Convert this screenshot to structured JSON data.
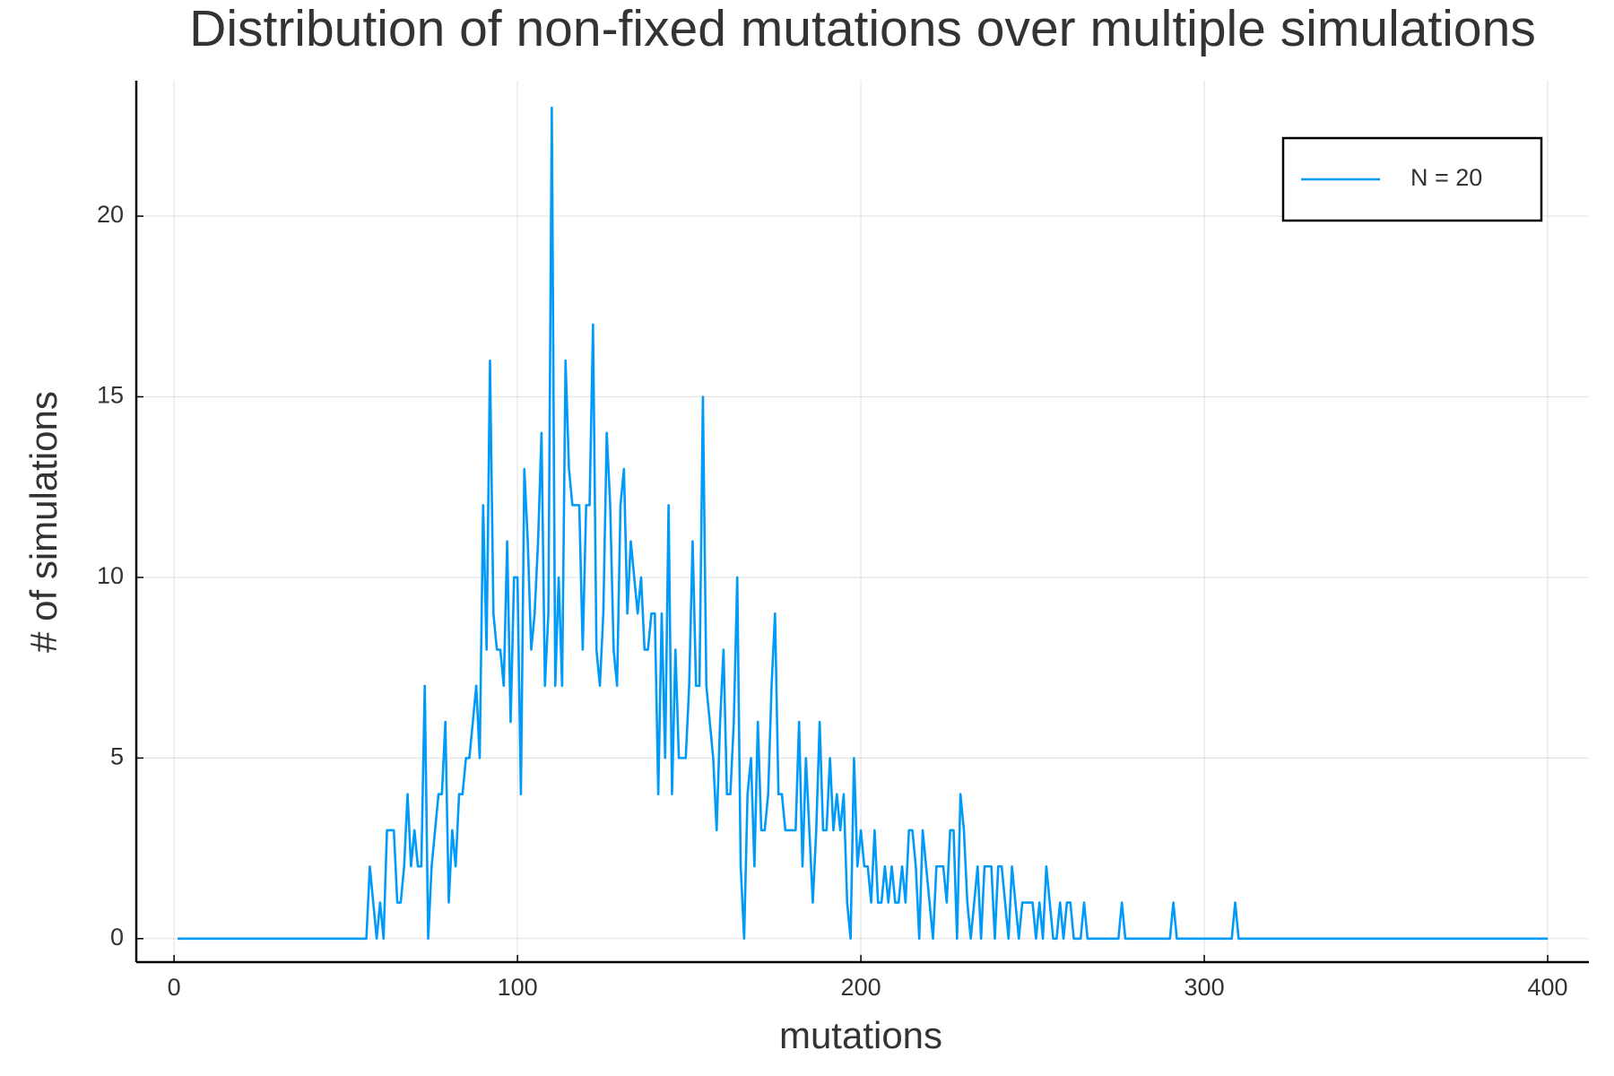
{
  "chart_data": {
    "type": "line",
    "title": "Distribution of non-fixed mutations over multiple simulations",
    "x_label": "mutations",
    "y_label": "# of simulations",
    "xlim": [
      -11,
      412
    ],
    "ylim": [
      -0.65,
      23.75
    ],
    "xticks": [
      0,
      100,
      200,
      300,
      400
    ],
    "yticks": [
      0,
      5,
      10,
      15,
      20
    ],
    "grid": true,
    "legend_position": "top-right",
    "series": [
      {
        "name": "N = 20",
        "color": "#009af9",
        "x": [
          1,
          56,
          57,
          58,
          59,
          60,
          61,
          62,
          63,
          64,
          65,
          66,
          67,
          68,
          69,
          70,
          71,
          72,
          73,
          74,
          75,
          76,
          77,
          78,
          79,
          80,
          81,
          82,
          83,
          84,
          85,
          86,
          87,
          88,
          89,
          90,
          91,
          92,
          93,
          94,
          95,
          96,
          97,
          98,
          99,
          100,
          101,
          102,
          103,
          104,
          105,
          106,
          107,
          108,
          109,
          110,
          111,
          112,
          113,
          114,
          115,
          116,
          117,
          118,
          119,
          120,
          121,
          122,
          123,
          124,
          125,
          126,
          127,
          128,
          129,
          130,
          131,
          132,
          133,
          134,
          135,
          136,
          137,
          138,
          139,
          140,
          141,
          142,
          143,
          144,
          145,
          146,
          147,
          148,
          149,
          150,
          151,
          152,
          153,
          154,
          155,
          156,
          157,
          158,
          159,
          160,
          161,
          162,
          163,
          164,
          165,
          166,
          167,
          168,
          169,
          170,
          171,
          172,
          173,
          174,
          175,
          176,
          177,
          178,
          179,
          180,
          181,
          182,
          183,
          184,
          185,
          186,
          187,
          188,
          189,
          190,
          191,
          192,
          193,
          194,
          195,
          196,
          197,
          198,
          199,
          200,
          201,
          202,
          203,
          204,
          205,
          206,
          207,
          208,
          209,
          210,
          211,
          212,
          213,
          214,
          215,
          216,
          217,
          218,
          219,
          220,
          221,
          222,
          223,
          224,
          225,
          226,
          227,
          228,
          229,
          230,
          231,
          232,
          233,
          234,
          235,
          236,
          237,
          238,
          239,
          240,
          241,
          242,
          243,
          244,
          245,
          246,
          247,
          248,
          249,
          250,
          251,
          252,
          253,
          254,
          255,
          256,
          257,
          258,
          259,
          260,
          261,
          262,
          263,
          264,
          265,
          266,
          275,
          276,
          277,
          290,
          291,
          292,
          308,
          309,
          310,
          400
        ],
        "values": [
          0,
          0,
          2,
          1,
          0,
          1,
          0,
          3,
          3,
          3,
          1,
          1,
          2,
          4,
          2,
          3,
          2,
          2,
          7,
          0,
          2,
          3,
          4,
          4,
          6,
          1,
          3,
          2,
          4,
          4,
          5,
          5,
          6,
          7,
          5,
          12,
          8,
          16,
          9,
          8,
          8,
          7,
          11,
          6,
          10,
          10,
          4,
          13,
          11,
          8,
          9,
          11,
          14,
          7,
          9,
          23,
          7,
          10,
          7,
          16,
          13,
          12,
          12,
          12,
          8,
          12,
          12,
          17,
          8,
          7,
          9,
          14,
          12,
          8,
          7,
          12,
          13,
          9,
          11,
          10,
          9,
          10,
          8,
          8,
          9,
          9,
          4,
          9,
          5,
          12,
          4,
          8,
          5,
          5,
          5,
          7,
          11,
          7,
          7,
          15,
          7,
          6,
          5,
          3,
          6,
          8,
          4,
          4,
          6,
          10,
          2,
          0,
          4,
          5,
          2,
          6,
          3,
          3,
          4,
          7,
          9,
          4,
          4,
          3,
          3,
          3,
          3,
          6,
          2,
          5,
          3,
          1,
          3,
          6,
          3,
          3,
          5,
          3,
          4,
          3,
          4,
          1,
          0,
          5,
          2,
          3,
          2,
          2,
          1,
          3,
          1,
          1,
          2,
          1,
          2,
          1,
          1,
          2,
          1,
          3,
          3,
          2,
          0,
          3,
          2,
          1,
          0,
          2,
          2,
          2,
          1,
          3,
          3,
          0,
          4,
          3,
          1,
          0,
          1,
          2,
          0,
          2,
          2,
          2,
          0,
          2,
          2,
          1,
          0,
          2,
          1,
          0,
          1,
          1,
          1,
          1,
          0,
          1,
          0,
          2,
          1,
          0,
          0,
          1,
          0,
          1,
          1,
          0,
          0,
          0,
          1,
          0,
          0,
          1,
          0,
          0,
          1,
          0,
          0,
          1,
          0,
          0
        ]
      }
    ]
  }
}
